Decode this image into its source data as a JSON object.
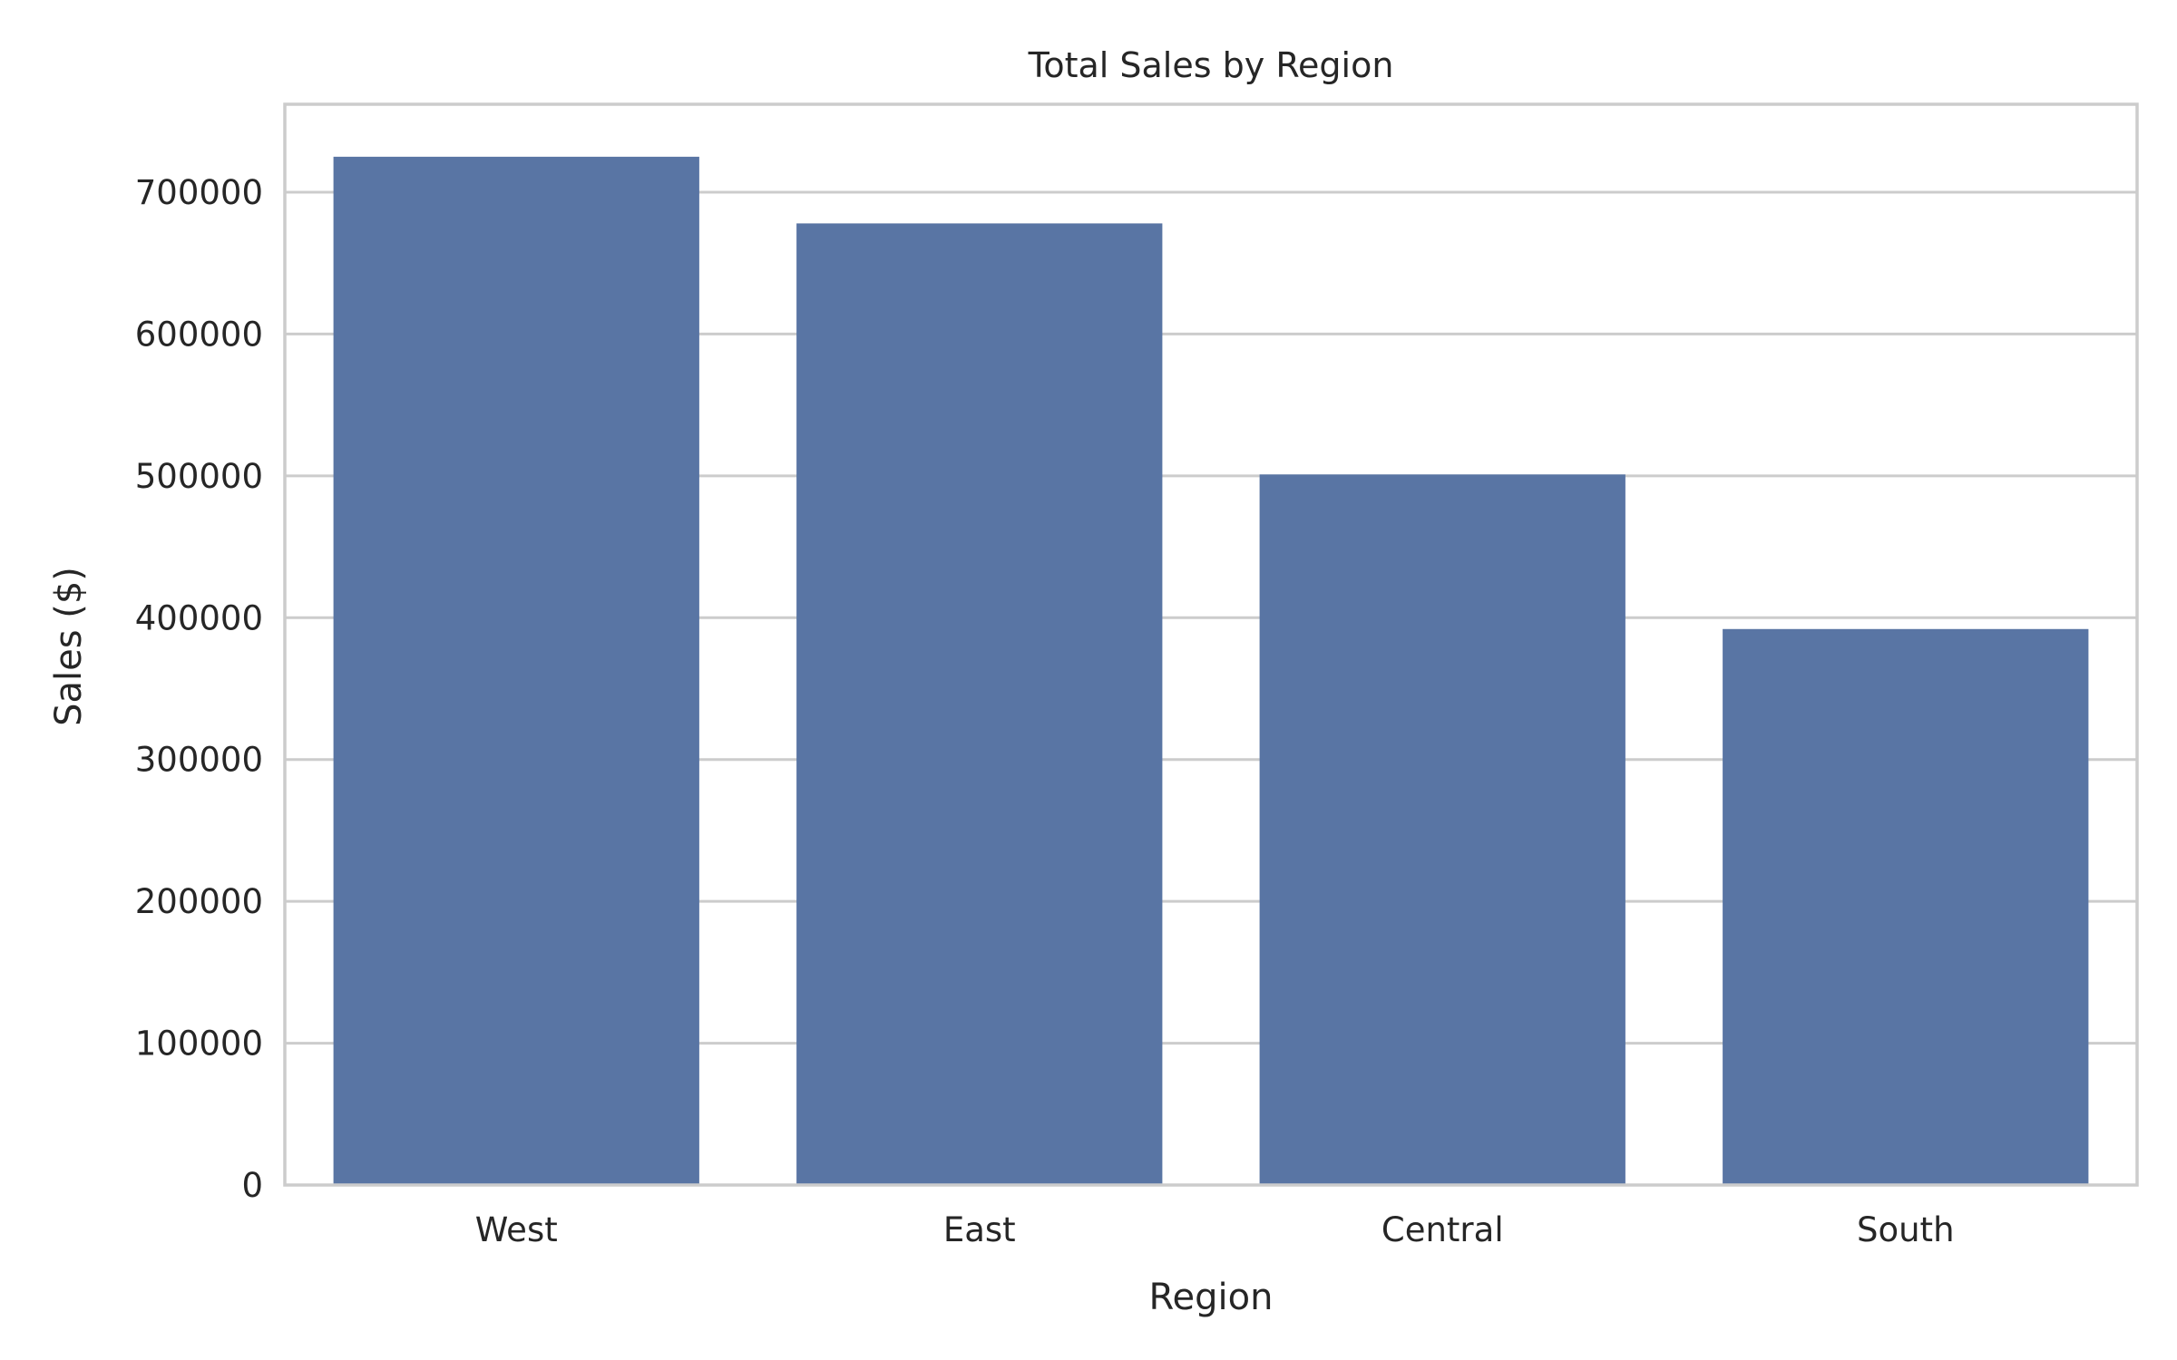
{
  "chart_data": {
    "type": "bar",
    "title": "Total Sales by Region",
    "xlabel": "Region",
    "ylabel": "Sales ($)",
    "categories": [
      "West",
      "East",
      "Central",
      "South"
    ],
    "series": [
      {
        "values": [
          725000,
          678000,
          501000,
          392000
        ]
      }
    ],
    "ylim": [
      0,
      762000
    ],
    "yticks": [
      0,
      100000,
      200000,
      300000,
      400000,
      500000,
      600000,
      700000
    ],
    "ytick_labels": [
      "0",
      "100000",
      "200000",
      "300000",
      "400000",
      "500000",
      "600000",
      "700000"
    ],
    "grid": "horizontal",
    "legend": "none",
    "colors": {
      "bar": "#5975a4",
      "grid": "#cccccc",
      "spine": "#cccccc",
      "text": "#262626",
      "background": "#ffffff"
    }
  }
}
